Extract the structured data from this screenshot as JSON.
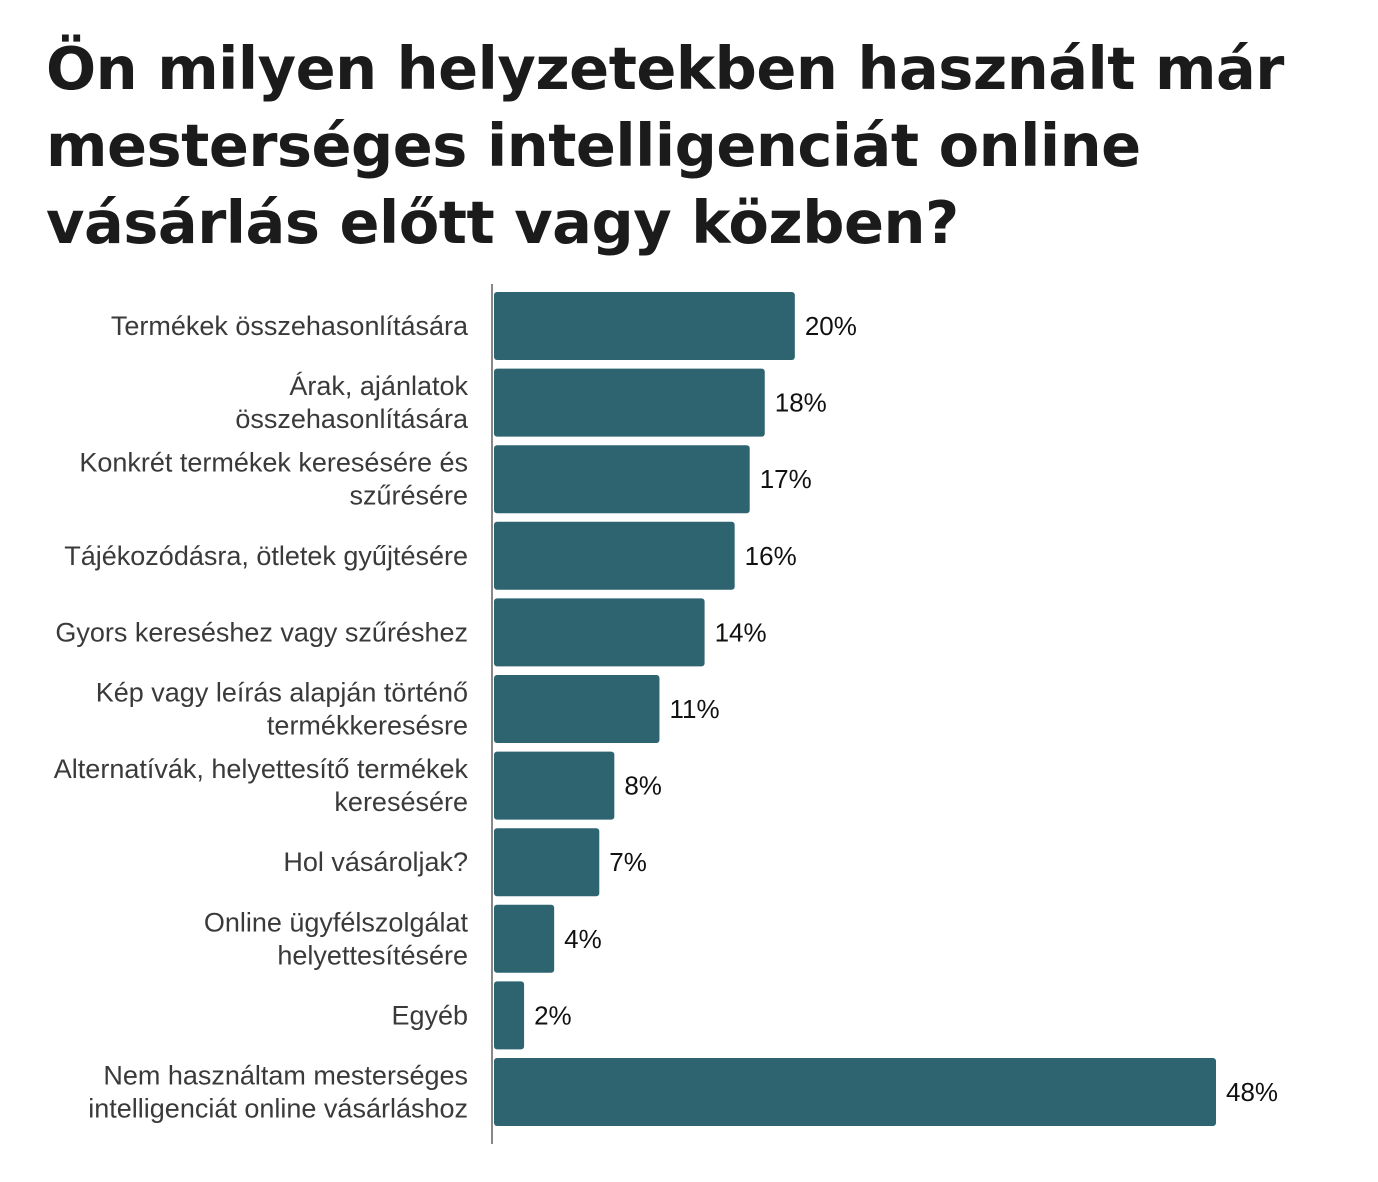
{
  "chart_data": {
    "type": "bar",
    "orientation": "horizontal",
    "title": "Ön milyen helyzetekben használt már mesterséges intelligenciát online vásárlás előtt vagy közben?",
    "categories": [
      [
        "Termékek összehasonlítására"
      ],
      [
        "Árak, ajánlatok",
        "összehasonlítására"
      ],
      [
        "Konkrét termékek keresésére és",
        "szűrésére"
      ],
      [
        "Tájékozódásra, ötletek gyűjtésére"
      ],
      [
        "Gyors kereséshez vagy szűréshez"
      ],
      [
        "Kép vagy leírás alapján történő",
        "termékkeresésre"
      ],
      [
        "Alternatívák, helyettesítő termékek",
        "keresésére"
      ],
      [
        "Hol vásároljak?"
      ],
      [
        "Online ügyfélszolgálat",
        "helyettesítésére"
      ],
      [
        "Egyéb"
      ],
      [
        "Nem használtam mesterséges",
        "intelligenciát online vásárláshoz"
      ]
    ],
    "values": [
      20,
      18,
      17,
      16,
      14,
      11,
      8,
      7,
      4,
      2,
      48
    ],
    "value_labels": [
      "20%",
      "18%",
      "17%",
      "16%",
      "14%",
      "11%",
      "8%",
      "7%",
      "4%",
      "2%",
      "48%"
    ],
    "unit": "%",
    "xlim": [
      0,
      48
    ],
    "grid": false,
    "bar_color": "#2d6470",
    "axis_color": "#888888"
  }
}
